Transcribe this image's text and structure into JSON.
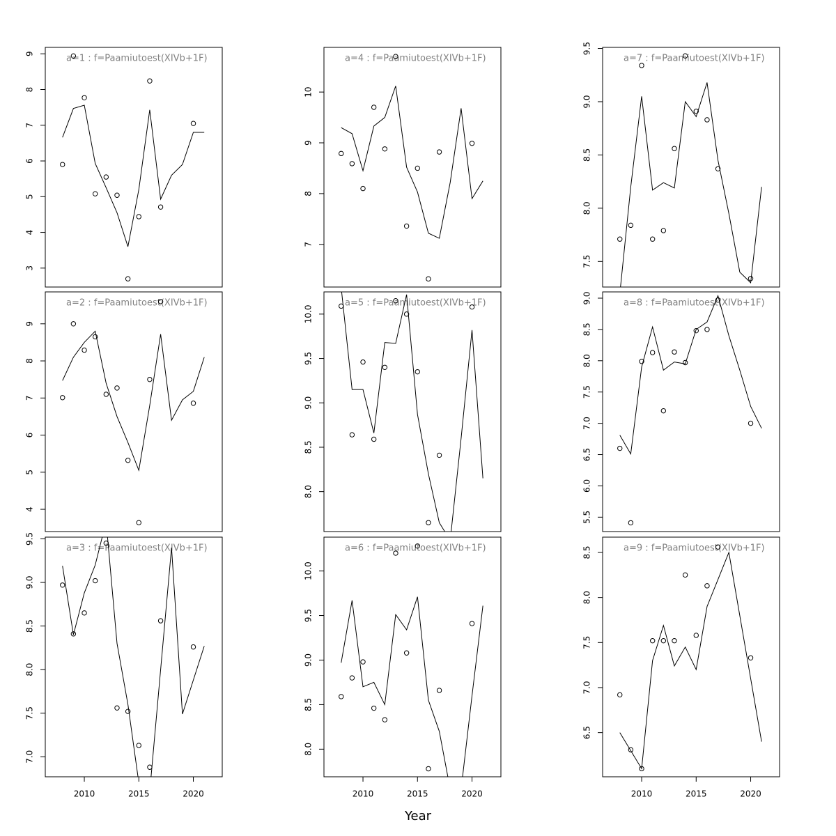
{
  "xlabel": "Year",
  "chart_data": [
    {
      "type": "line",
      "title": "a=1 : f=Paamiutoest(XIVb+1F)",
      "xlim": [
        2006.42,
        2022.65
      ],
      "ylim": [
        2.47,
        9.18
      ],
      "yticks": [
        3,
        4,
        5,
        6,
        7,
        8,
        9
      ],
      "series": [
        {
          "style": "points",
          "color": "#000000",
          "x": [
            2008,
            2009,
            2010,
            2011,
            2012,
            2013,
            2014,
            2015,
            2016,
            2017,
            2020
          ],
          "values": [
            5.9,
            8.94,
            7.77,
            5.08,
            5.55,
            5.04,
            2.7,
            4.44,
            8.24,
            4.71,
            7.05
          ]
        },
        {
          "style": "line",
          "color": "#000000",
          "x": [
            2008,
            2009,
            2010,
            2011,
            2012,
            2013,
            2014,
            2015,
            2016,
            2017,
            2018,
            2019,
            2020,
            2021
          ],
          "values": [
            6.66,
            7.47,
            7.56,
            5.93,
            5.25,
            4.55,
            3.6,
            5.2,
            7.43,
            4.93,
            5.6,
            5.9,
            6.8,
            6.8
          ]
        }
      ]
    },
    {
      "type": "line",
      "title": "a=2 : f=Paamiutoest(XIVb+1F)",
      "xlim": [
        2006.42,
        2022.65
      ],
      "ylim": [
        3.4,
        9.86
      ],
      "yticks": [
        4,
        5,
        6,
        7,
        8,
        9
      ],
      "series": [
        {
          "style": "points",
          "color": "#000000",
          "x": [
            2008,
            2009,
            2010,
            2011,
            2012,
            2013,
            2014,
            2015,
            2016,
            2017,
            2020
          ],
          "values": [
            7.01,
            9.0,
            8.29,
            8.65,
            7.1,
            7.27,
            5.32,
            3.64,
            7.5,
            9.6,
            6.86
          ]
        },
        {
          "style": "line",
          "color": "#000000",
          "x": [
            2008,
            2009,
            2010,
            2011,
            2012,
            2013,
            2014,
            2015,
            2016,
            2017,
            2018,
            2019,
            2020,
            2021
          ],
          "values": [
            7.47,
            8.1,
            8.5,
            8.8,
            7.4,
            6.5,
            5.8,
            5.05,
            6.8,
            8.72,
            6.4,
            6.95,
            7.18,
            8.1
          ]
        }
      ]
    },
    {
      "type": "line",
      "title": "a=3 : f=Paamiutoest(XIVb+1F)",
      "xlim": [
        2006.42,
        2022.65
      ],
      "ylim": [
        6.77,
        9.52
      ],
      "xticks": [
        2010,
        2015,
        2020
      ],
      "yticks": [
        {
          "value": 7,
          "label": "7.0"
        },
        7.5,
        {
          "value": 8,
          "label": "8.0"
        },
        8.5,
        {
          "value": 9,
          "label": "9.0"
        },
        9.5
      ],
      "series": [
        {
          "style": "points",
          "color": "#000000",
          "x": [
            2008,
            2009,
            2010,
            2011,
            2012,
            2013,
            2014,
            2015,
            2016,
            2017,
            2020
          ],
          "values": [
            8.97,
            8.41,
            8.65,
            9.02,
            9.45,
            7.56,
            7.52,
            7.13,
            6.88,
            8.56,
            8.26
          ]
        },
        {
          "style": "line",
          "color": "#000000",
          "x": [
            2008,
            2009,
            2010,
            2011,
            2012,
            2013,
            2014,
            2015,
            2016,
            2017,
            2018,
            2019,
            2020,
            2021
          ],
          "values": [
            9.19,
            8.4,
            8.88,
            9.2,
            9.7,
            8.3,
            7.6,
            6.7,
            6.6,
            8.0,
            9.4,
            7.49,
            7.88,
            8.27
          ]
        }
      ]
    },
    {
      "type": "line",
      "title": "a=4 : f=Paamiutoest(XIVb+1F)",
      "xlim": [
        2006.42,
        2022.65
      ],
      "ylim": [
        6.16,
        10.88
      ],
      "yticks": [
        7,
        8,
        9,
        10
      ],
      "series": [
        {
          "style": "points",
          "color": "#000000",
          "x": [
            2008,
            2009,
            2010,
            2011,
            2012,
            2013,
            2014,
            2015,
            2016,
            2017,
            2020
          ],
          "values": [
            8.79,
            8.59,
            8.1,
            9.7,
            8.88,
            10.7,
            7.36,
            8.5,
            6.32,
            8.82,
            8.99
          ]
        },
        {
          "style": "line",
          "color": "#000000",
          "x": [
            2008,
            2009,
            2010,
            2011,
            2012,
            2013,
            2014,
            2015,
            2016,
            2017,
            2018,
            2019,
            2020,
            2021
          ],
          "values": [
            9.3,
            9.18,
            8.45,
            9.33,
            9.5,
            10.12,
            8.52,
            8.03,
            7.22,
            7.12,
            8.22,
            9.68,
            7.9,
            8.25
          ]
        }
      ]
    },
    {
      "type": "line",
      "title": "a=5 : f=Paamiutoest(XIVb+1F)",
      "xlim": [
        2006.42,
        2022.65
      ],
      "ylim": [
        7.55,
        10.25
      ],
      "yticks": [
        {
          "value": 8,
          "label": "8.0"
        },
        8.5,
        {
          "value": 9,
          "label": "9.0"
        },
        9.5,
        {
          "value": 10,
          "label": "10.0"
        }
      ],
      "series": [
        {
          "style": "points",
          "color": "#000000",
          "x": [
            2008,
            2009,
            2010,
            2011,
            2012,
            2013,
            2014,
            2015,
            2016,
            2017,
            2020
          ],
          "values": [
            10.09,
            8.64,
            9.46,
            8.59,
            9.4,
            10.15,
            10.0,
            9.35,
            7.65,
            8.41,
            10.08
          ]
        },
        {
          "style": "line",
          "color": "#000000",
          "x": [
            2008,
            2009,
            2010,
            2011,
            2012,
            2013,
            2014,
            2015,
            2016,
            2017,
            2018,
            2019,
            2020,
            2021
          ],
          "values": [
            10.3,
            9.15,
            9.15,
            8.66,
            9.68,
            9.67,
            10.22,
            8.87,
            8.2,
            7.65,
            7.45,
            8.6,
            9.82,
            8.15
          ]
        }
      ]
    },
    {
      "type": "line",
      "title": "a=6 : f=Paamiutoest(XIVb+1F)",
      "xlim": [
        2006.42,
        2022.65
      ],
      "ylim": [
        7.69,
        10.38
      ],
      "xticks": [
        2010,
        2015,
        2020
      ],
      "yticks": [
        {
          "value": 8,
          "label": "8.0"
        },
        8.5,
        {
          "value": 9,
          "label": "9.0"
        },
        9.5,
        {
          "value": 10,
          "label": "10.0"
        }
      ],
      "series": [
        {
          "style": "points",
          "color": "#000000",
          "x": [
            2008,
            2009,
            2010,
            2011,
            2012,
            2013,
            2014,
            2015,
            2016,
            2017,
            2020
          ],
          "values": [
            8.59,
            8.8,
            8.98,
            8.46,
            8.33,
            10.2,
            9.08,
            10.28,
            7.78,
            8.66,
            9.41
          ]
        },
        {
          "style": "line",
          "color": "#000000",
          "x": [
            2008,
            2009,
            2010,
            2011,
            2012,
            2013,
            2014,
            2015,
            2016,
            2017,
            2018,
            2019,
            2020,
            2021
          ],
          "values": [
            8.97,
            9.67,
            8.7,
            8.75,
            8.5,
            9.51,
            9.34,
            9.71,
            8.55,
            8.2,
            7.55,
            7.55,
            8.6,
            9.61
          ]
        }
      ]
    },
    {
      "type": "line",
      "title": "a=7 : f=Paamiutoest(XIVb+1F)",
      "xlim": [
        2006.42,
        2022.65
      ],
      "ylim": [
        7.26,
        9.51
      ],
      "yticks": [
        7.5,
        {
          "value": 8,
          "label": "8.0"
        },
        8.5,
        {
          "value": 9,
          "label": "9.0"
        },
        9.5
      ],
      "series": [
        {
          "style": "points",
          "color": "#000000",
          "x": [
            2008,
            2009,
            2010,
            2011,
            2012,
            2013,
            2014,
            2015,
            2016,
            2017,
            2020
          ],
          "values": [
            7.71,
            7.84,
            9.34,
            7.71,
            7.79,
            8.56,
            9.43,
            8.91,
            8.83,
            8.37,
            7.34
          ]
        },
        {
          "style": "line",
          "color": "#000000",
          "x": [
            2008,
            2009,
            2010,
            2011,
            2012,
            2013,
            2014,
            2015,
            2016,
            2017,
            2018,
            2019,
            2020,
            2021
          ],
          "values": [
            7.2,
            8.2,
            9.05,
            8.17,
            8.24,
            8.19,
            9.0,
            8.86,
            9.18,
            8.45,
            7.95,
            7.4,
            7.3,
            8.2
          ]
        }
      ]
    },
    {
      "type": "line",
      "title": "a=8 : f=Paamiutoest(XIVb+1F)",
      "xlim": [
        2006.42,
        2022.65
      ],
      "ylim": [
        5.27,
        9.1
      ],
      "yticks": [
        5.5,
        {
          "value": 6,
          "label": "6.0"
        },
        6.5,
        {
          "value": 7,
          "label": "7.0"
        },
        7.5,
        {
          "value": 8,
          "label": "8.0"
        },
        8.5,
        {
          "value": 9,
          "label": "9.0"
        }
      ],
      "series": [
        {
          "style": "points",
          "color": "#000000",
          "x": [
            2008,
            2009,
            2010,
            2011,
            2012,
            2013,
            2014,
            2015,
            2016,
            2017,
            2020
          ],
          "values": [
            6.6,
            5.41,
            7.99,
            8.13,
            7.2,
            8.14,
            7.97,
            8.48,
            8.5,
            8.97,
            7.0
          ]
        },
        {
          "style": "line",
          "color": "#000000",
          "x": [
            2008,
            2009,
            2010,
            2011,
            2012,
            2013,
            2014,
            2015,
            2016,
            2017,
            2018,
            2019,
            2020,
            2021
          ],
          "values": [
            6.81,
            6.51,
            7.9,
            8.54,
            7.85,
            7.98,
            7.95,
            8.5,
            8.62,
            9.04,
            8.4,
            7.85,
            7.27,
            6.92
          ]
        }
      ]
    },
    {
      "type": "line",
      "title": "a=9 : f=Paamiutoest(XIVb+1F)",
      "xlim": [
        2006.42,
        2022.65
      ],
      "ylim": [
        6.01,
        8.67
      ],
      "xticks": [
        2010,
        2015,
        2020
      ],
      "yticks": [
        6.5,
        {
          "value": 7,
          "label": "7.0"
        },
        7.5,
        {
          "value": 8,
          "label": "8.0"
        },
        8.5
      ],
      "series": [
        {
          "style": "points",
          "color": "#000000",
          "x": [
            2008,
            2009,
            2010,
            2011,
            2012,
            2013,
            2014,
            2015,
            2016,
            2017,
            2020
          ],
          "values": [
            6.92,
            6.31,
            6.1,
            7.52,
            7.52,
            7.52,
            8.25,
            7.58,
            8.13,
            8.56,
            7.33
          ]
        },
        {
          "style": "line",
          "color": "#000000",
          "x": [
            2008,
            2009,
            2010,
            2011,
            2012,
            2013,
            2014,
            2015,
            2016,
            2017,
            2018,
            2019,
            2020,
            2021
          ],
          "values": [
            6.5,
            6.3,
            6.1,
            7.3,
            7.69,
            7.24,
            7.45,
            7.2,
            7.9,
            8.2,
            8.5,
            7.8,
            7.1,
            6.4
          ]
        }
      ]
    }
  ]
}
